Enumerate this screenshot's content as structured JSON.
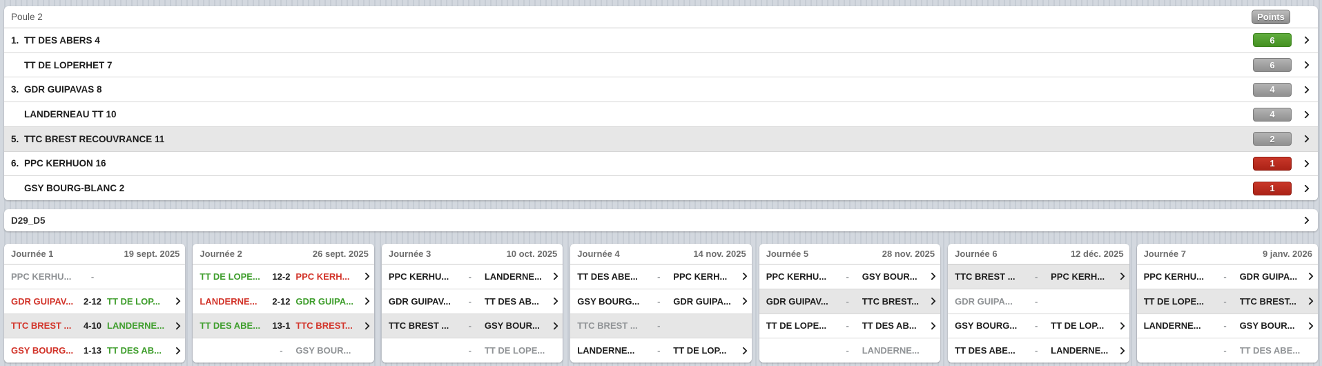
{
  "colors": {
    "win_green": "#3f9e2d",
    "lose_red": "#d2342a",
    "bye_gray": "#909396",
    "badge_green": "#459122",
    "badge_red": "#ab2217",
    "badge_gray": "#909090",
    "row_highlight": "#e7e7e7",
    "background_stripe": "#c6ccd4"
  },
  "pool": {
    "title": "Poule 2",
    "points_label": "Points",
    "teams": [
      {
        "rank": "1.",
        "name": "TT DES ABERS 4",
        "points": "6",
        "badge": "green",
        "highlighted": false
      },
      {
        "rank": "",
        "name": "TT DE LOPERHET 7",
        "points": "6",
        "badge": "gray",
        "highlighted": false
      },
      {
        "rank": "3.",
        "name": "GDR GUIPAVAS 8",
        "points": "4",
        "badge": "gray",
        "highlighted": false
      },
      {
        "rank": "",
        "name": "LANDERNEAU TT 10",
        "points": "4",
        "badge": "gray",
        "highlighted": false
      },
      {
        "rank": "5.",
        "name": "TTC BREST RECOUVRANCE 11",
        "points": "2",
        "badge": "gray",
        "highlighted": true
      },
      {
        "rank": "6.",
        "name": "PPC KERHUON 16",
        "points": "1",
        "badge": "red",
        "highlighted": false
      },
      {
        "rank": "",
        "name": "GSY BOURG-BLANC 2",
        "points": "1",
        "badge": "red",
        "highlighted": false
      }
    ]
  },
  "division": {
    "label": "D29_D5"
  },
  "rounds": [
    {
      "label": "Journée 1",
      "date": "19 sept. 2025",
      "matches": [
        {
          "home": "PPC KERHU...",
          "score": "-",
          "away": "",
          "home_result": "bye",
          "away_result": "bye",
          "score_state": "none",
          "highlighted": false,
          "chevron": false
        },
        {
          "home": "GDR GUIPAV...",
          "score": "2-12",
          "away": "TT DE LOP...",
          "home_result": "loser",
          "away_result": "winner",
          "score_state": "played",
          "highlighted": false,
          "chevron": true
        },
        {
          "home": "TTC BREST ...",
          "score": "4-10",
          "away": "LANDERNE...",
          "home_result": "loser",
          "away_result": "winner",
          "score_state": "played",
          "highlighted": true,
          "chevron": true
        },
        {
          "home": "GSY BOURG...",
          "score": "1-13",
          "away": "TT DES AB...",
          "home_result": "loser",
          "away_result": "winner",
          "score_state": "played",
          "highlighted": false,
          "chevron": true
        }
      ]
    },
    {
      "label": "Journée 2",
      "date": "26 sept. 2025",
      "matches": [
        {
          "home": "TT DE LOPE...",
          "score": "12-2",
          "away": "PPC KERH...",
          "home_result": "winner",
          "away_result": "loser",
          "score_state": "played",
          "highlighted": false,
          "chevron": true
        },
        {
          "home": "LANDERNE...",
          "score": "2-12",
          "away": "GDR GUIPA...",
          "home_result": "loser",
          "away_result": "winner",
          "score_state": "played",
          "highlighted": false,
          "chevron": true
        },
        {
          "home": "TT DES ABE...",
          "score": "13-1",
          "away": "TTC BREST...",
          "home_result": "winner",
          "away_result": "loser",
          "score_state": "played",
          "highlighted": true,
          "chevron": true
        },
        {
          "home": "",
          "score": "-",
          "away": "GSY BOUR...",
          "home_result": "bye",
          "away_result": "bye",
          "score_state": "none",
          "highlighted": false,
          "chevron": false
        }
      ]
    },
    {
      "label": "Journée 3",
      "date": "10 oct. 2025",
      "matches": [
        {
          "home": "PPC KERHU...",
          "score": "-",
          "away": "LANDERNE...",
          "home_result": "upcoming",
          "away_result": "upcoming",
          "score_state": "none",
          "highlighted": false,
          "chevron": true
        },
        {
          "home": "GDR GUIPAV...",
          "score": "-",
          "away": "TT DES AB...",
          "home_result": "upcoming",
          "away_result": "upcoming",
          "score_state": "none",
          "highlighted": false,
          "chevron": true
        },
        {
          "home": "TTC BREST ...",
          "score": "-",
          "away": "GSY BOUR...",
          "home_result": "upcoming",
          "away_result": "upcoming",
          "score_state": "none",
          "highlighted": true,
          "chevron": true
        },
        {
          "home": "",
          "score": "-",
          "away": "TT DE LOPE...",
          "home_result": "bye",
          "away_result": "bye",
          "score_state": "none",
          "highlighted": false,
          "chevron": false
        }
      ]
    },
    {
      "label": "Journée 4",
      "date": "14 nov. 2025",
      "matches": [
        {
          "home": "TT DES ABE...",
          "score": "-",
          "away": "PPC KERH...",
          "home_result": "upcoming",
          "away_result": "upcoming",
          "score_state": "none",
          "highlighted": false,
          "chevron": true
        },
        {
          "home": "GSY BOURG...",
          "score": "-",
          "away": "GDR GUIPA...",
          "home_result": "upcoming",
          "away_result": "upcoming",
          "score_state": "none",
          "highlighted": false,
          "chevron": true
        },
        {
          "home": "TTC BREST ...",
          "score": "-",
          "away": "",
          "home_result": "bye",
          "away_result": "bye",
          "score_state": "none",
          "highlighted": true,
          "chevron": false
        },
        {
          "home": "LANDERNE...",
          "score": "-",
          "away": "TT DE LOP...",
          "home_result": "upcoming",
          "away_result": "upcoming",
          "score_state": "none",
          "highlighted": false,
          "chevron": true
        }
      ]
    },
    {
      "label": "Journée 5",
      "date": "28 nov. 2025",
      "matches": [
        {
          "home": "PPC KERHU...",
          "score": "-",
          "away": "GSY BOUR...",
          "home_result": "upcoming",
          "away_result": "upcoming",
          "score_state": "none",
          "highlighted": false,
          "chevron": true
        },
        {
          "home": "GDR GUIPAV...",
          "score": "-",
          "away": "TTC BREST...",
          "home_result": "upcoming",
          "away_result": "upcoming",
          "score_state": "none",
          "highlighted": true,
          "chevron": true
        },
        {
          "home": "TT DE LOPE...",
          "score": "-",
          "away": "TT DES AB...",
          "home_result": "upcoming",
          "away_result": "upcoming",
          "score_state": "none",
          "highlighted": false,
          "chevron": true
        },
        {
          "home": "",
          "score": "-",
          "away": "LANDERNE...",
          "home_result": "bye",
          "away_result": "bye",
          "score_state": "none",
          "highlighted": false,
          "chevron": false
        }
      ]
    },
    {
      "label": "Journée 6",
      "date": "12 déc. 2025",
      "matches": [
        {
          "home": "TTC BREST ...",
          "score": "-",
          "away": "PPC KERH...",
          "home_result": "upcoming",
          "away_result": "upcoming",
          "score_state": "none",
          "highlighted": true,
          "chevron": true
        },
        {
          "home": "GDR GUIPA...",
          "score": "-",
          "away": "",
          "home_result": "bye",
          "away_result": "bye",
          "score_state": "none",
          "highlighted": false,
          "chevron": false
        },
        {
          "home": "GSY BOURG...",
          "score": "-",
          "away": "TT DE LOP...",
          "home_result": "upcoming",
          "away_result": "upcoming",
          "score_state": "none",
          "highlighted": false,
          "chevron": true
        },
        {
          "home": "TT DES ABE...",
          "score": "-",
          "away": "LANDERNE...",
          "home_result": "upcoming",
          "away_result": "upcoming",
          "score_state": "none",
          "highlighted": false,
          "chevron": true
        }
      ]
    },
    {
      "label": "Journée 7",
      "date": "9 janv. 2026",
      "matches": [
        {
          "home": "PPC KERHU...",
          "score": "-",
          "away": "GDR GUIPA...",
          "home_result": "upcoming",
          "away_result": "upcoming",
          "score_state": "none",
          "highlighted": false,
          "chevron": true
        },
        {
          "home": "TT DE LOPE...",
          "score": "-",
          "away": "TTC BREST...",
          "home_result": "upcoming",
          "away_result": "upcoming",
          "score_state": "none",
          "highlighted": true,
          "chevron": true
        },
        {
          "home": "LANDERNE...",
          "score": "-",
          "away": "GSY BOUR...",
          "home_result": "upcoming",
          "away_result": "upcoming",
          "score_state": "none",
          "highlighted": false,
          "chevron": true
        },
        {
          "home": "",
          "score": "-",
          "away": "TT DES ABE...",
          "home_result": "bye",
          "away_result": "bye",
          "score_state": "none",
          "highlighted": false,
          "chevron": false
        }
      ]
    }
  ]
}
